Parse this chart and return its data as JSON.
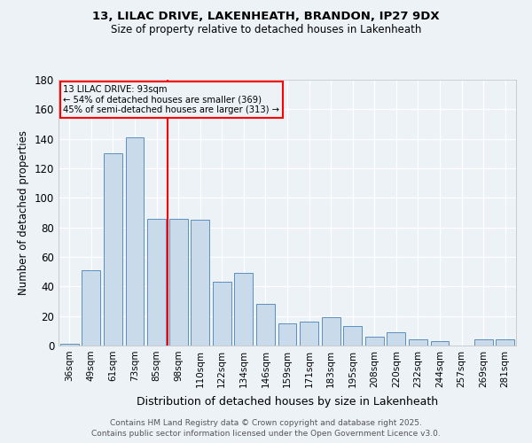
{
  "title1": "13, LILAC DRIVE, LAKENHEATH, BRANDON, IP27 9DX",
  "title2": "Size of property relative to detached houses in Lakenheath",
  "xlabel": "Distribution of detached houses by size in Lakenheath",
  "ylabel": "Number of detached properties",
  "categories": [
    "36sqm",
    "49sqm",
    "61sqm",
    "73sqm",
    "85sqm",
    "98sqm",
    "110sqm",
    "122sqm",
    "134sqm",
    "146sqm",
    "159sqm",
    "171sqm",
    "183sqm",
    "195sqm",
    "208sqm",
    "220sqm",
    "232sqm",
    "244sqm",
    "257sqm",
    "269sqm",
    "281sqm"
  ],
  "values": [
    1,
    51,
    130,
    141,
    86,
    86,
    85,
    43,
    49,
    28,
    15,
    16,
    19,
    13,
    6,
    9,
    4,
    3,
    0,
    4,
    4
  ],
  "bar_color": "#c9daea",
  "bar_edge_color": "#5b8fbf",
  "vline_color": "red",
  "annotation_title": "13 LILAC DRIVE: 93sqm",
  "annotation_line1": "← 54% of detached houses are smaller (369)",
  "annotation_line2": "45% of semi-detached houses are larger (313) →",
  "annotation_box_color": "red",
  "ylim": [
    0,
    180
  ],
  "yticks": [
    0,
    20,
    40,
    60,
    80,
    100,
    120,
    140,
    160,
    180
  ],
  "footer1": "Contains HM Land Registry data © Crown copyright and database right 2025.",
  "footer2": "Contains public sector information licensed under the Open Government Licence v3.0.",
  "bg_color": "#edf2f7"
}
